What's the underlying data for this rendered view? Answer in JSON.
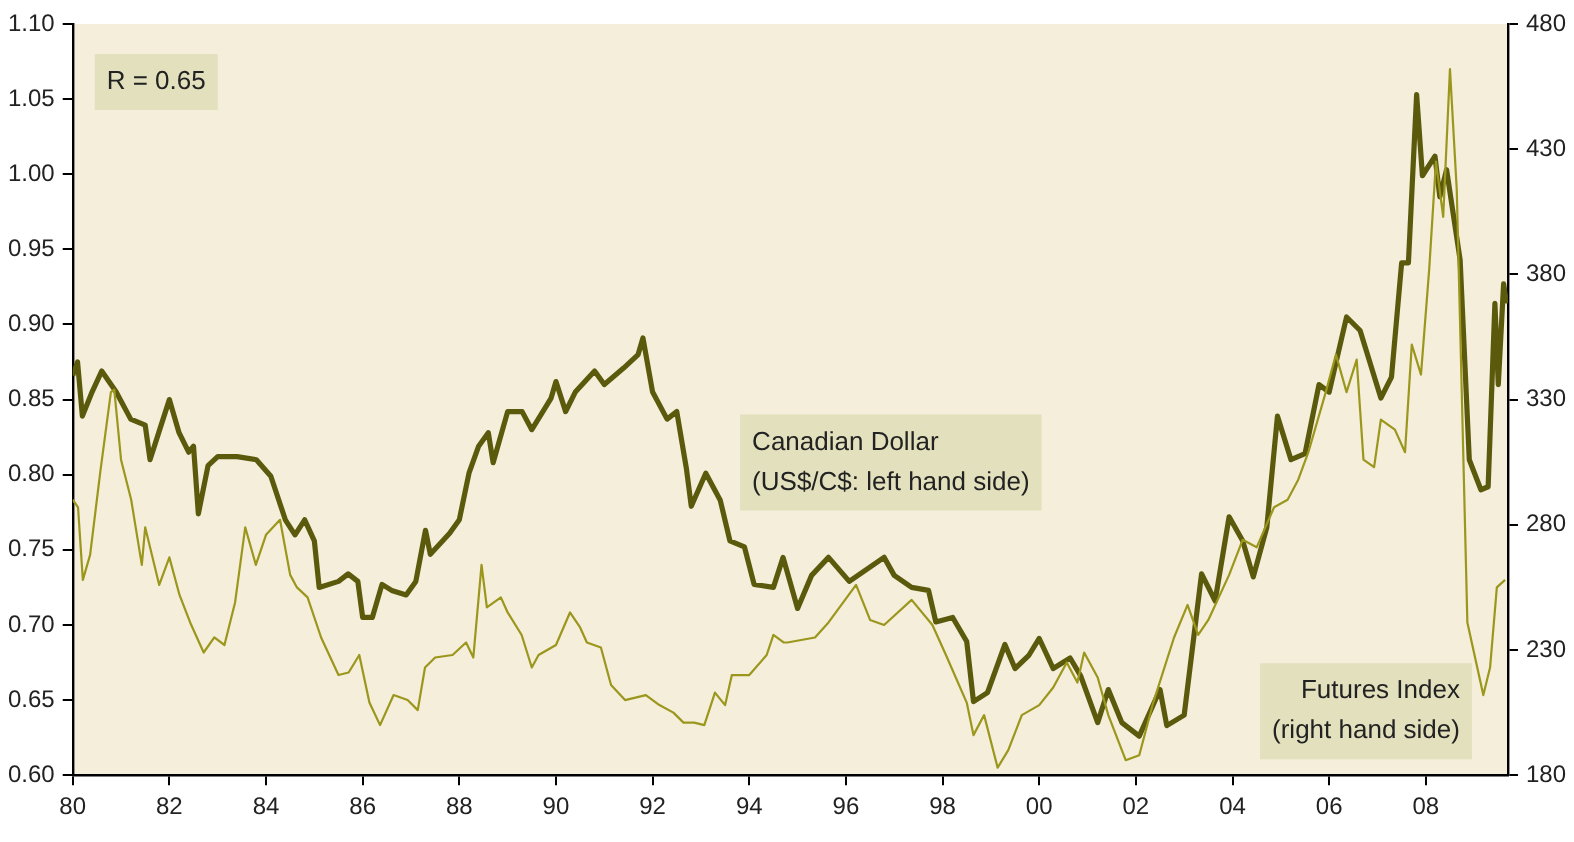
{
  "chart_data": {
    "type": "line",
    "xlim": [
      1980,
      2009.7
    ],
    "xticks": [
      {
        "value": 1980,
        "label": "80"
      },
      {
        "value": 1982,
        "label": "82"
      },
      {
        "value": 1984,
        "label": "84"
      },
      {
        "value": 1986,
        "label": "86"
      },
      {
        "value": 1988,
        "label": "88"
      },
      {
        "value": 1990,
        "label": "90"
      },
      {
        "value": 1992,
        "label": "92"
      },
      {
        "value": 1994,
        "label": "94"
      },
      {
        "value": 1996,
        "label": "96"
      },
      {
        "value": 1998,
        "label": "98"
      },
      {
        "value": 2000,
        "label": "00"
      },
      {
        "value": 2002,
        "label": "02"
      },
      {
        "value": 2004,
        "label": "04"
      },
      {
        "value": 2006,
        "label": "06"
      },
      {
        "value": 2008,
        "label": "08"
      }
    ],
    "ylim": [
      0.6,
      1.1
    ],
    "yticks": [
      {
        "value": 0.6,
        "label": "0.60"
      },
      {
        "value": 0.65,
        "label": "0.65"
      },
      {
        "value": 0.7,
        "label": "0.70"
      },
      {
        "value": 0.75,
        "label": "0.75"
      },
      {
        "value": 0.8,
        "label": "0.80"
      },
      {
        "value": 0.85,
        "label": "0.85"
      },
      {
        "value": 0.9,
        "label": "0.90"
      },
      {
        "value": 0.95,
        "label": "0.95"
      },
      {
        "value": 1.0,
        "label": "1.00"
      },
      {
        "value": 1.05,
        "label": "1.05"
      },
      {
        "value": 1.1,
        "label": "1.10"
      }
    ],
    "y2lim": [
      180,
      480
    ],
    "y2ticks": [
      180,
      230,
      280,
      330,
      380,
      430,
      480
    ],
    "grid": false,
    "legend": false,
    "marker": "none",
    "annotations": [
      "R = 0.65"
    ],
    "series": [
      {
        "name": "Canadian Dollar (US$/C$: left hand side)",
        "color": "#5b5a0c",
        "x": [
          1980.0,
          1980.1,
          1980.2,
          1980.4,
          1980.6,
          1980.9,
          1981.2,
          1981.5,
          1981.6,
          1981.8,
          1982.0,
          1982.2,
          1982.4,
          1982.5,
          1982.6,
          1982.8,
          1983.0,
          1983.4,
          1983.8,
          1984.1,
          1984.4,
          1984.6,
          1984.8,
          1985.0,
          1985.1,
          1985.5,
          1985.7,
          1985.9,
          1986.0,
          1986.2,
          1986.4,
          1986.6,
          1986.9,
          1987.1,
          1987.3,
          1987.4,
          1987.8,
          1988.0,
          1988.2,
          1988.4,
          1988.6,
          1988.7,
          1989.0,
          1989.3,
          1989.5,
          1989.9,
          1990.0,
          1990.2,
          1990.4,
          1990.8,
          1991.0,
          1991.4,
          1991.7,
          1991.8,
          1992.0,
          1992.3,
          1992.5,
          1992.7,
          1992.8,
          1993.1,
          1993.4,
          1993.6,
          1993.9,
          1994.1,
          1994.5,
          1994.7,
          1995.0,
          1995.29,
          1995.64,
          1996.07,
          1996.79,
          1997.0,
          1997.36,
          1997.71,
          1997.86,
          1998.21,
          1998.5,
          1998.64,
          1998.93,
          1999.29,
          1999.5,
          1999.79,
          2000.0,
          2000.29,
          2000.64,
          2000.86,
          2001.21,
          2001.43,
          2001.71,
          2002.07,
          2002.5,
          2002.64,
          2003.0,
          2003.36,
          2003.64,
          2003.93,
          2004.21,
          2004.43,
          2004.71,
          2004.93,
          2005.21,
          2005.5,
          2005.79,
          2006.0,
          2006.36,
          2006.64,
          2007.07,
          2007.29,
          2007.5,
          2007.64,
          2007.81,
          2007.93,
          2008.19,
          2008.29,
          2008.43,
          2008.71,
          2008.9,
          2009.14,
          2009.29,
          2009.43,
          2009.5,
          2009.61,
          2009.67
        ],
        "values": [
          0.866,
          0.875,
          0.839,
          0.855,
          0.869,
          0.855,
          0.837,
          0.833,
          0.81,
          0.83,
          0.85,
          0.828,
          0.815,
          0.819,
          0.774,
          0.806,
          0.812,
          0.812,
          0.81,
          0.799,
          0.77,
          0.76,
          0.77,
          0.756,
          0.725,
          0.729,
          0.734,
          0.729,
          0.705,
          0.705,
          0.727,
          0.723,
          0.72,
          0.729,
          0.763,
          0.747,
          0.761,
          0.77,
          0.801,
          0.819,
          0.828,
          0.808,
          0.842,
          0.842,
          0.83,
          0.851,
          0.862,
          0.842,
          0.855,
          0.869,
          0.86,
          0.871,
          0.88,
          0.891,
          0.855,
          0.837,
          0.842,
          0.804,
          0.779,
          0.801,
          0.783,
          0.756,
          0.752,
          0.727,
          0.725,
          0.745,
          0.711,
          0.733,
          0.745,
          0.729,
          0.745,
          0.733,
          0.725,
          0.723,
          0.702,
          0.705,
          0.689,
          0.649,
          0.655,
          0.687,
          0.671,
          0.68,
          0.691,
          0.671,
          0.678,
          0.666,
          0.635,
          0.657,
          0.635,
          0.626,
          0.657,
          0.633,
          0.64,
          0.734,
          0.716,
          0.772,
          0.756,
          0.732,
          0.765,
          0.839,
          0.81,
          0.814,
          0.86,
          0.855,
          0.905,
          0.896,
          0.851,
          0.865,
          0.941,
          0.941,
          1.053,
          0.999,
          1.012,
          0.985,
          1.003,
          0.943,
          0.81,
          0.79,
          0.792,
          0.914,
          0.86,
          0.927,
          0.914
        ]
      },
      {
        "name": "Futures Index (right hand side)",
        "color": "#9b961c",
        "axis": "y2",
        "x": [
          1980.0,
          1980.11,
          1980.21,
          1980.36,
          1980.57,
          1980.79,
          1980.86,
          1981.0,
          1981.21,
          1981.43,
          1981.5,
          1981.79,
          1982.0,
          1982.21,
          1982.43,
          1982.71,
          1982.93,
          1983.14,
          1983.36,
          1983.57,
          1983.79,
          1984.0,
          1984.29,
          1984.5,
          1984.64,
          1984.86,
          1985.14,
          1985.5,
          1985.71,
          1985.93,
          1986.14,
          1986.36,
          1986.64,
          1986.93,
          1987.14,
          1987.29,
          1987.5,
          1987.86,
          1988.14,
          1988.29,
          1988.46,
          1988.57,
          1988.86,
          1989.0,
          1989.29,
          1989.5,
          1989.64,
          1990.0,
          1990.29,
          1990.5,
          1990.64,
          1990.93,
          1991.14,
          1991.43,
          1991.86,
          1992.14,
          1992.43,
          1992.64,
          1992.86,
          1993.07,
          1993.29,
          1993.5,
          1993.64,
          1994.0,
          1994.36,
          1994.5,
          1994.71,
          1994.79,
          1995.36,
          1995.64,
          1996.21,
          1996.5,
          1996.79,
          1997.36,
          1997.79,
          1998.07,
          1998.5,
          1998.64,
          1998.86,
          1999.14,
          1999.36,
          1999.64,
          2000.0,
          2000.29,
          2000.57,
          2000.79,
          2000.93,
          2001.21,
          2001.43,
          2001.79,
          2002.07,
          2002.36,
          2002.79,
          2003.07,
          2003.29,
          2003.5,
          2003.93,
          2004.21,
          2004.5,
          2004.86,
          2005.14,
          2005.36,
          2005.57,
          2005.93,
          2006.14,
          2006.36,
          2006.57,
          2006.71,
          2006.93,
          2007.07,
          2007.36,
          2007.57,
          2007.71,
          2007.9,
          2008.07,
          2008.21,
          2008.36,
          2008.5,
          2008.64,
          2008.71,
          2008.86,
          2009.19,
          2009.33,
          2009.47,
          2009.64
        ],
        "values": [
          290,
          287,
          258,
          268,
          301,
          333,
          334,
          306,
          290,
          264,
          279,
          256,
          267,
          252,
          241,
          229,
          235,
          232,
          249,
          279,
          264,
          276,
          282,
          260,
          255,
          251,
          235,
          220,
          221,
          228,
          209,
          200,
          212,
          210,
          206,
          223,
          227,
          228,
          233,
          227,
          264,
          247,
          251,
          245,
          236,
          223,
          228,
          232,
          245,
          239,
          233,
          231,
          216,
          210,
          212,
          208,
          205,
          201,
          201,
          200,
          213,
          208,
          220,
          220,
          228,
          236,
          233,
          233,
          235,
          241,
          256,
          242,
          240,
          250,
          240,
          228,
          209,
          196,
          204,
          183,
          190,
          204,
          208,
          215,
          225,
          217,
          229,
          219,
          204,
          186,
          188,
          209,
          235,
          248,
          236,
          242,
          260,
          274,
          271,
          287,
          290,
          298,
          309,
          333,
          348,
          333,
          346,
          306,
          303,
          322,
          318,
          309,
          352,
          340,
          382,
          425,
          403,
          462,
          414,
          360,
          241,
          212,
          223,
          255,
          258
        ]
      }
    ]
  }
}
